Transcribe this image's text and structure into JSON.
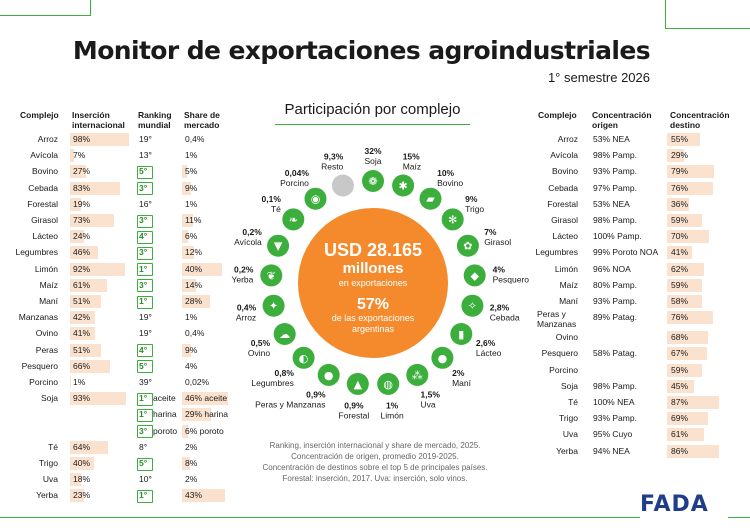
{
  "title": "Monitor de exportaciones agroindustriales",
  "subtitle": "1° semestre 2026",
  "center": {
    "title": "Participación por complejo",
    "amount": "USD 28.165",
    "amount_unit": "millones",
    "amount_caption": "en exportaciones",
    "share": "57%",
    "share_caption_1": "de las exportaciones",
    "share_caption_2": "argentinas"
  },
  "colors": {
    "accent_green": "#3cae3c",
    "accent_orange": "#f58a2c",
    "bar_peach": "#fbe2cf",
    "brand_blue": "#1f3d8a"
  },
  "left_table": {
    "headers": {
      "complejo": "Complejo",
      "insercion": "Inserción internacional",
      "ranking": "Ranking mundial",
      "share": "Share de mercado"
    },
    "rows": [
      {
        "name": "Arroz",
        "ins": "98%",
        "ins_val": 98,
        "rank": "19°",
        "rank_box": false,
        "share": "0,4%",
        "share_val": 0.4
      },
      {
        "name": "Avícola",
        "ins": "7%",
        "ins_val": 7,
        "rank": "13°",
        "rank_box": false,
        "share": "1%",
        "share_val": 1
      },
      {
        "name": "Bovino",
        "ins": "27%",
        "ins_val": 27,
        "rank": "5°",
        "rank_box": true,
        "share": "5%",
        "share_val": 5
      },
      {
        "name": "Cebada",
        "ins": "83%",
        "ins_val": 83,
        "rank": "3°",
        "rank_box": true,
        "share": "9%",
        "share_val": 9
      },
      {
        "name": "Forestal",
        "ins": "19%",
        "ins_val": 19,
        "rank": "16°",
        "rank_box": false,
        "share": "1%",
        "share_val": 1
      },
      {
        "name": "Girasol",
        "ins": "73%",
        "ins_val": 73,
        "rank": "3°",
        "rank_box": true,
        "share": "11%",
        "share_val": 11
      },
      {
        "name": "Lácteo",
        "ins": "24%",
        "ins_val": 24,
        "rank": "4°",
        "rank_box": true,
        "share": "6%",
        "share_val": 6
      },
      {
        "name": "Legumbres",
        "ins": "46%",
        "ins_val": 46,
        "rank": "3°",
        "rank_box": true,
        "share": "12%",
        "share_val": 12
      },
      {
        "name": "Limón",
        "ins": "92%",
        "ins_val": 92,
        "rank": "1°",
        "rank_box": true,
        "share": "40%",
        "share_val": 40
      },
      {
        "name": "Maíz",
        "ins": "61%",
        "ins_val": 61,
        "rank": "3°",
        "rank_box": true,
        "share": "14%",
        "share_val": 14
      },
      {
        "name": "Maní",
        "ins": "51%",
        "ins_val": 51,
        "rank": "1°",
        "rank_box": true,
        "share": "28%",
        "share_val": 28
      },
      {
        "name": "Manzanas",
        "ins": "42%",
        "ins_val": 42,
        "rank": "19°",
        "rank_box": false,
        "share": "1%",
        "share_val": 1
      },
      {
        "name": "Ovino",
        "ins": "41%",
        "ins_val": 41,
        "rank": "19°",
        "rank_box": false,
        "share": "0,4%",
        "share_val": 0.4
      },
      {
        "name": "Peras",
        "ins": "51%",
        "ins_val": 51,
        "rank": "4°",
        "rank_box": true,
        "share": "9%",
        "share_val": 9
      },
      {
        "name": "Pesquero",
        "ins": "66%",
        "ins_val": 66,
        "rank": "5°",
        "rank_box": true,
        "share": "4%",
        "share_val": 4
      },
      {
        "name": "Porcino",
        "ins": "1%",
        "ins_val": 1,
        "rank": "39°",
        "rank_box": false,
        "share": "0,02%",
        "share_val": 0.02
      },
      {
        "name": "Soja",
        "ins": "93%",
        "ins_val": 93,
        "rank": "",
        "rank_box": false,
        "share": "",
        "share_val": 0
      },
      {
        "name": "",
        "ins": "",
        "ins_val": 0,
        "rank": "",
        "rank_box": false,
        "share": "",
        "share_val": 0
      },
      {
        "name": "",
        "ins": "",
        "ins_val": 0,
        "rank": "",
        "rank_box": false,
        "share": "",
        "share_val": 0
      },
      {
        "name": "Té",
        "ins": "64%",
        "ins_val": 64,
        "rank": "8°",
        "rank_box": false,
        "share": "2%",
        "share_val": 2
      },
      {
        "name": "Trigo",
        "ins": "40%",
        "ins_val": 40,
        "rank": "5°",
        "rank_box": true,
        "share": "8%",
        "share_val": 8
      },
      {
        "name": "Uva",
        "ins": "18%",
        "ins_val": 18,
        "rank": "10°",
        "rank_box": false,
        "share": "2%",
        "share_val": 2
      },
      {
        "name": "Yerba",
        "ins": "23%",
        "ins_val": 23,
        "rank": "1°",
        "rank_box": true,
        "share": "43%",
        "share_val": 43
      }
    ],
    "soja_sub": [
      {
        "rank": "1°",
        "label": "aceite",
        "share": "46% aceite",
        "share_val": 46
      },
      {
        "rank": "1°",
        "label": "harina",
        "share": "29% harina",
        "share_val": 29
      },
      {
        "rank": "3°",
        "label": "poroto",
        "share": "6% poroto",
        "share_val": 6
      }
    ]
  },
  "right_table": {
    "headers": {
      "complejo": "Complejo",
      "origen": "Concentración origen",
      "destino": "Concentración destino"
    },
    "rows": [
      {
        "name": "Arroz",
        "origen": "53% NEA",
        "destino": "55%",
        "dest_val": 55
      },
      {
        "name": "Avícola",
        "origen": "98% Pamp.",
        "destino": "29%",
        "dest_val": 29
      },
      {
        "name": "Bovino",
        "origen": "93% Pamp.",
        "destino": "79%",
        "dest_val": 79
      },
      {
        "name": "Cebada",
        "origen": "97% Pamp.",
        "destino": "76%",
        "dest_val": 76
      },
      {
        "name": "Forestal",
        "origen": "53% NEA",
        "destino": "36%",
        "dest_val": 36
      },
      {
        "name": "Girasol",
        "origen": "98% Pamp.",
        "destino": "59%",
        "dest_val": 59
      },
      {
        "name": "Lácteo",
        "origen": "100% Pamp.",
        "destino": "70%",
        "dest_val": 70
      },
      {
        "name": "Legumbres",
        "origen": "99% Poroto NOA",
        "destino": "41%",
        "dest_val": 41
      },
      {
        "name": "Limón",
        "origen": "96% NOA",
        "destino": "62%",
        "dest_val": 62
      },
      {
        "name": "Maíz",
        "origen": "80% Pamp.",
        "destino": "59%",
        "dest_val": 59
      },
      {
        "name": "Maní",
        "origen": "93% Pamp.",
        "destino": "58%",
        "dest_val": 58
      },
      {
        "name": "Peras y Manzanas",
        "origen": "89% Patag.",
        "destino": "76%",
        "dest_val": 76
      },
      {
        "name": "Ovino",
        "origen": "",
        "destino": "68%",
        "dest_val": 68
      },
      {
        "name": "Pesquero",
        "origen": "58% Patag.",
        "destino": "67%",
        "dest_val": 67
      },
      {
        "name": "Porcino",
        "origen": "",
        "destino": "59%",
        "dest_val": 59
      },
      {
        "name": "Soja",
        "origen": "98% Pamp.",
        "destino": "45%",
        "dest_val": 45
      },
      {
        "name": "Té",
        "origen": "100% NEA",
        "destino": "87%",
        "dest_val": 87
      },
      {
        "name": "Trigo",
        "origen": "93% Pamp.",
        "destino": "69%",
        "dest_val": 69
      },
      {
        "name": "Uva",
        "origen": "95% Cuyo",
        "destino": "61%",
        "dest_val": 61
      },
      {
        "name": "Yerba",
        "origen": "94% NEA",
        "destino": "86%",
        "dest_val": 86
      }
    ]
  },
  "ring": [
    {
      "pct": "32%",
      "name": "Soja",
      "icon": "soy-icon"
    },
    {
      "pct": "15%",
      "name": "Maíz",
      "icon": "corn-icon"
    },
    {
      "pct": "10%",
      "name": "Bovino",
      "icon": "cow-icon"
    },
    {
      "pct": "9%",
      "name": "Trigo",
      "icon": "wheat-icon"
    },
    {
      "pct": "7%",
      "name": "Girasol",
      "icon": "sunflower-icon"
    },
    {
      "pct": "4%",
      "name": "Pesquero",
      "icon": "fish-icon"
    },
    {
      "pct": "2,8%",
      "name": "Cebada",
      "icon": "barley-icon"
    },
    {
      "pct": "2,6%",
      "name": "Lácteo",
      "icon": "milk-icon"
    },
    {
      "pct": "2%",
      "name": "Maní",
      "icon": "peanut-icon"
    },
    {
      "pct": "1,5%",
      "name": "Uva",
      "icon": "grape-icon"
    },
    {
      "pct": "1%",
      "name": "Limón",
      "icon": "lemon-icon"
    },
    {
      "pct": "0,9%",
      "name": "Forestal",
      "icon": "tree-icon"
    },
    {
      "pct": "0,9%",
      "name": "Peras y Manzanas",
      "icon": "apple-icon"
    },
    {
      "pct": "0,8%",
      "name": "Legumbres",
      "icon": "bean-icon"
    },
    {
      "pct": "0,5%",
      "name": "Ovino",
      "icon": "sheep-icon"
    },
    {
      "pct": "0,4%",
      "name": "Arroz",
      "icon": "rice-icon"
    },
    {
      "pct": "0,2%",
      "name": "Yerba",
      "icon": "leaf-icon"
    },
    {
      "pct": "0,2%",
      "name": "Avícola",
      "icon": "chicken-icon"
    },
    {
      "pct": "0,1%",
      "name": "Té",
      "icon": "tea-icon"
    },
    {
      "pct": "0,04%",
      "name": "Porcino",
      "icon": "pig-icon"
    },
    {
      "pct": "9,3%",
      "name": "Resto",
      "icon": "rest-dot"
    }
  ],
  "notes": [
    "Ranking, inserción internacional y share de mercado, 2025.",
    "Concentración de origen, promedio 2019-2025.",
    "Concentración de destinos sobre el top 5 de principales países.",
    "Forestal: inserción, 2017. Uva: inserción, solo vinos."
  ],
  "brand": "FADA"
}
